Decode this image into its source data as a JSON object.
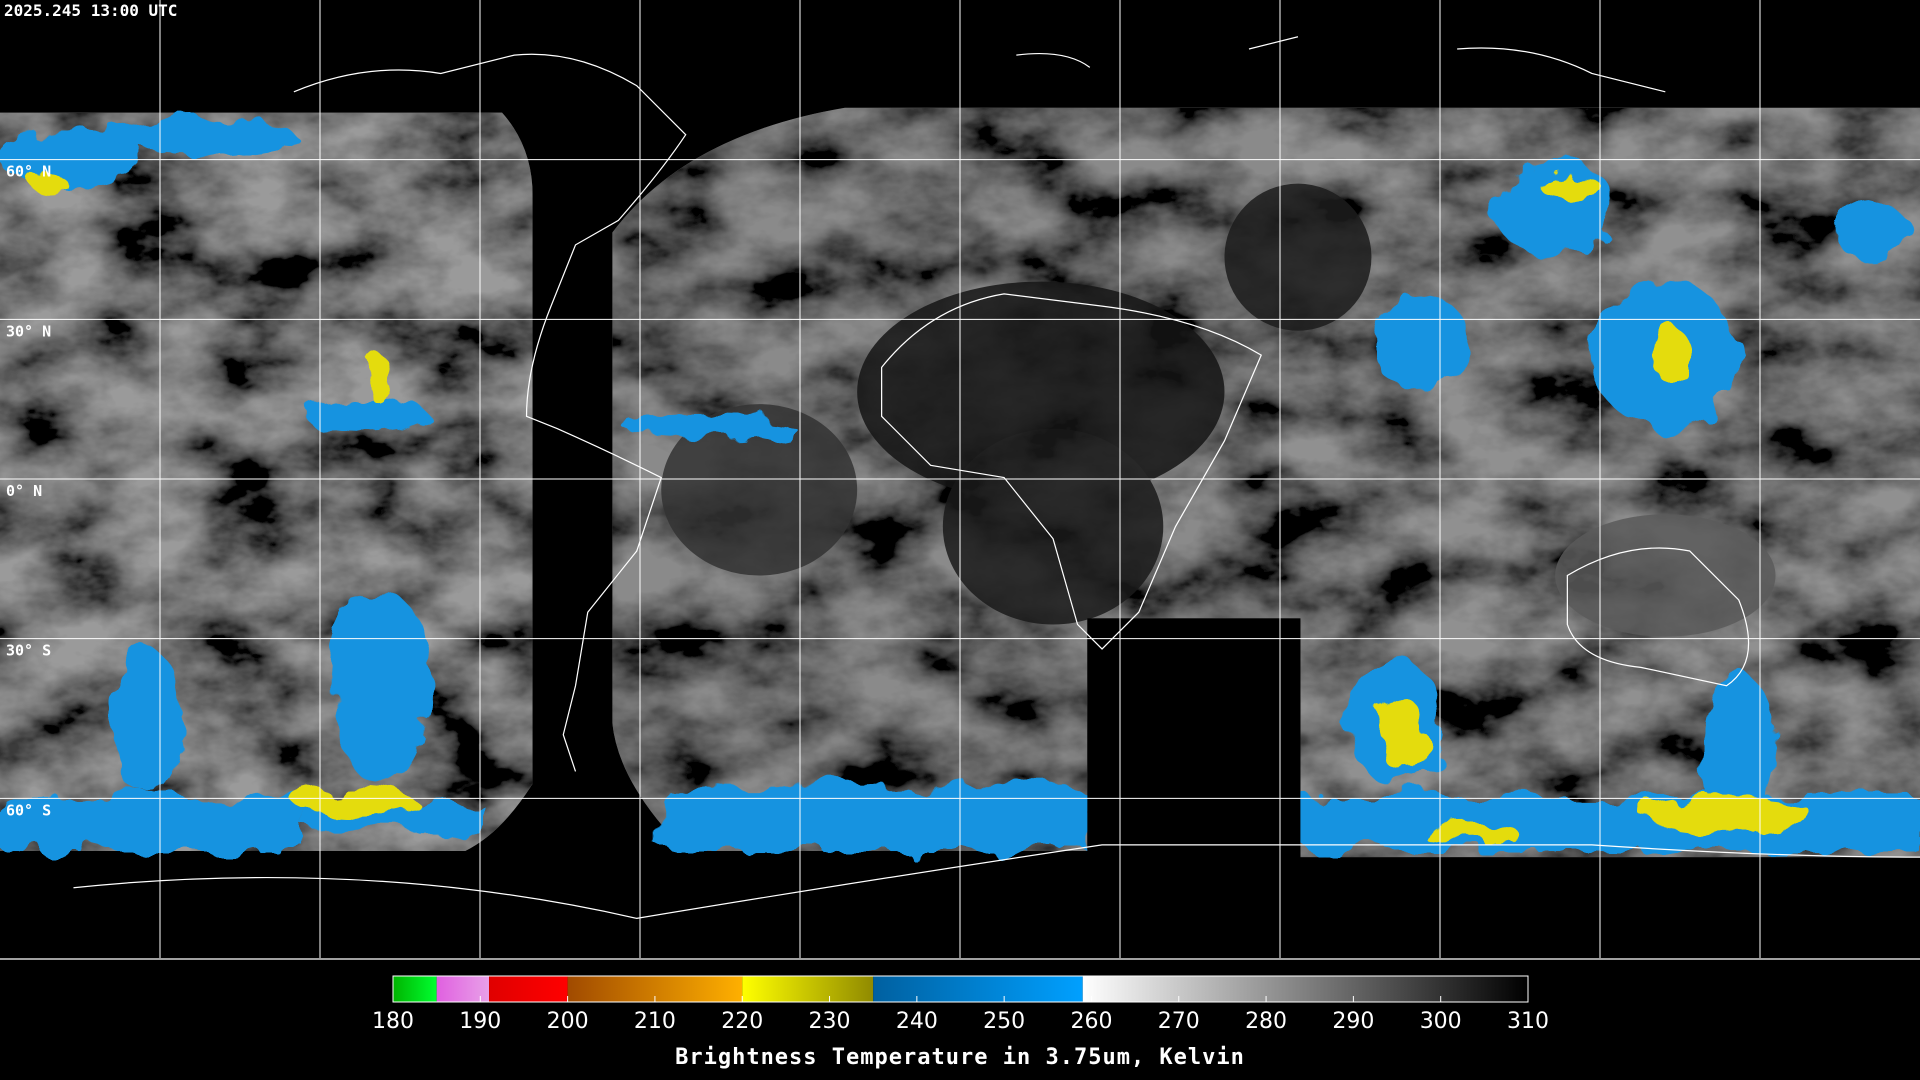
{
  "timestamp": "2025.245 13:00 UTC",
  "map": {
    "lat_range": [
      90,
      -90
    ],
    "lon_range": [
      -180,
      180
    ],
    "lat_lines": [
      {
        "value": 60,
        "label": "60° N"
      },
      {
        "value": 30,
        "label": "30° N"
      },
      {
        "value": 0,
        "label": "0° N"
      },
      {
        "value": -30,
        "label": "30° S"
      },
      {
        "value": -60,
        "label": "60° S"
      }
    ],
    "lon_lines": [
      -150,
      -120,
      -90,
      -60,
      -30,
      0,
      30,
      60,
      90,
      120,
      150
    ]
  },
  "colorbar": {
    "title": "Brightness Temperature in 3.75um, Kelvin",
    "range": [
      180,
      310
    ],
    "ticks": [
      180,
      190,
      200,
      210,
      220,
      230,
      240,
      250,
      260,
      270,
      280,
      290,
      300,
      310
    ],
    "segments": [
      {
        "from": 180,
        "to": 185,
        "colors": [
          "#00b400",
          "#00ff30"
        ]
      },
      {
        "from": 185,
        "to": 191,
        "colors": [
          "#e060e0",
          "#e8a0e8"
        ]
      },
      {
        "from": 191,
        "to": 200,
        "colors": [
          "#e00000",
          "#ff0000"
        ]
      },
      {
        "from": 200,
        "to": 220,
        "colors": [
          "#a04a00",
          "#ffb000"
        ]
      },
      {
        "from": 220,
        "to": 235,
        "colors": [
          "#ffff00",
          "#908a00"
        ]
      },
      {
        "from": 235,
        "to": 259,
        "colors": [
          "#0060a0",
          "#00a0ff"
        ]
      },
      {
        "from": 259,
        "to": 310,
        "colors": [
          "#ffffff",
          "#000000"
        ]
      }
    ]
  }
}
